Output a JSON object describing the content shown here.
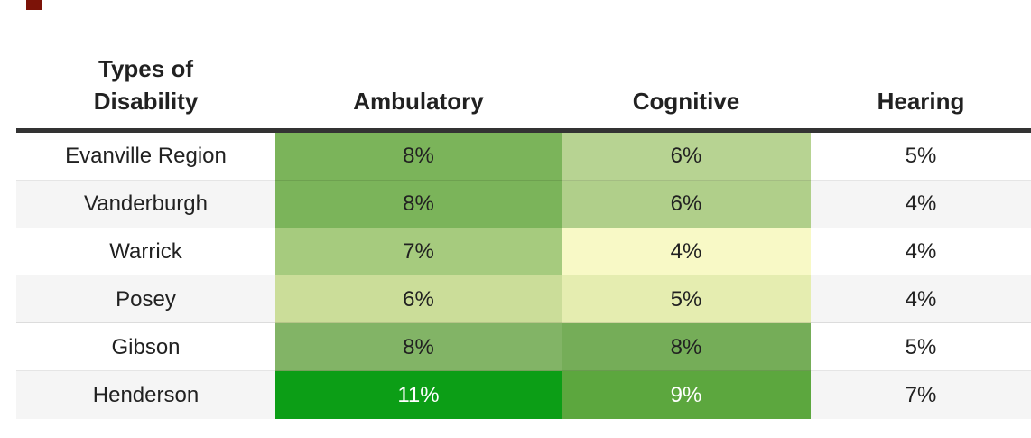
{
  "colors": {
    "corner_mark": "#7c1308",
    "header_rule": "#333333",
    "text": "#212121",
    "stripe_gray": "#f5f5f5",
    "white": "#ffffff"
  },
  "header": {
    "row_axis_label": "Types of Disability",
    "columns": [
      "Ambulatory",
      "Cognitive",
      "Hearing"
    ]
  },
  "rows": [
    {
      "label": "Evanville Region",
      "label_bg": "#ffffff",
      "cells": [
        {
          "text": "8%",
          "bg": "#7bb45a",
          "fg": "#212121"
        },
        {
          "text": "6%",
          "bg": "#b7d392",
          "fg": "#212121"
        },
        {
          "text": "5%",
          "bg": "#ffffff",
          "fg": "#212121"
        }
      ]
    },
    {
      "label": "Vanderburgh",
      "label_bg": "#f5f5f5",
      "cells": [
        {
          "text": "8%",
          "bg": "#7bb45a",
          "fg": "#212121"
        },
        {
          "text": "6%",
          "bg": "#b0cf8a",
          "fg": "#212121"
        },
        {
          "text": "4%",
          "bg": "#f5f5f5",
          "fg": "#212121"
        }
      ]
    },
    {
      "label": "Warrick",
      "label_bg": "#ffffff",
      "cells": [
        {
          "text": "7%",
          "bg": "#a6cb7e",
          "fg": "#212121"
        },
        {
          "text": "4%",
          "bg": "#f8f9c6",
          "fg": "#212121"
        },
        {
          "text": "4%",
          "bg": "#ffffff",
          "fg": "#212121"
        }
      ]
    },
    {
      "label": "Posey",
      "label_bg": "#f5f5f5",
      "cells": [
        {
          "text": "6%",
          "bg": "#cbdd99",
          "fg": "#212121"
        },
        {
          "text": "5%",
          "bg": "#e5edb0",
          "fg": "#212121"
        },
        {
          "text": "4%",
          "bg": "#f5f5f5",
          "fg": "#212121"
        }
      ]
    },
    {
      "label": "Gibson",
      "label_bg": "#ffffff",
      "cells": [
        {
          "text": "8%",
          "bg": "#82b466",
          "fg": "#212121"
        },
        {
          "text": "8%",
          "bg": "#75ad58",
          "fg": "#212121"
        },
        {
          "text": "5%",
          "bg": "#ffffff",
          "fg": "#212121"
        }
      ]
    },
    {
      "label": "Henderson",
      "label_bg": "#f5f5f5",
      "cells": [
        {
          "text": "11%",
          "bg": "#0c9e16",
          "fg": "#ffffff"
        },
        {
          "text": "9%",
          "bg": "#5ca73e",
          "fg": "#ffffff"
        },
        {
          "text": "7%",
          "bg": "#f5f5f5",
          "fg": "#212121"
        }
      ]
    }
  ],
  "chart_data": {
    "type": "heatmap",
    "title": "",
    "row_axis_label": "Types of Disability",
    "rows": [
      "Evanville Region",
      "Vanderburgh",
      "Warrick",
      "Posey",
      "Gibson",
      "Henderson"
    ],
    "columns": [
      "Ambulatory",
      "Cognitive",
      "Hearing"
    ],
    "values_percent": [
      [
        8,
        6,
        5
      ],
      [
        8,
        6,
        4
      ],
      [
        7,
        4,
        4
      ],
      [
        6,
        5,
        4
      ],
      [
        8,
        8,
        5
      ],
      [
        11,
        9,
        7
      ]
    ],
    "color_encoded_columns": [
      "Ambulatory",
      "Cognitive"
    ],
    "color_scale": "pale-yellow (low) to saturated green (high)",
    "legend": "none",
    "grid": "horizontal row separators only"
  }
}
